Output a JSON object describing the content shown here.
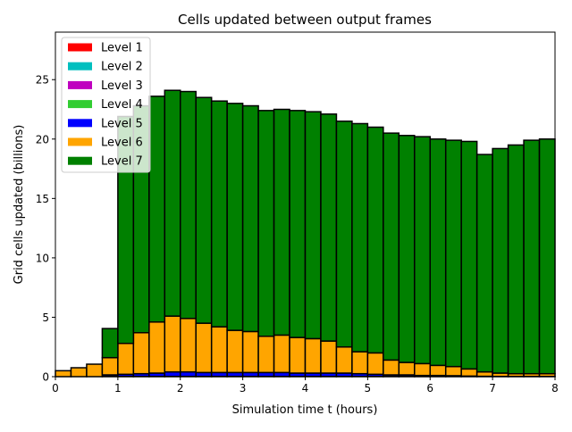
{
  "chart_data": {
    "type": "bar",
    "stacked": true,
    "title": "Cells updated between output frames",
    "xlabel": "Simulation time t (hours)",
    "ylabel": "Grid cells updated (billions)",
    "xlim": [
      0,
      8
    ],
    "ylim": [
      0,
      29
    ],
    "bar_width": 0.25,
    "x": [
      0,
      0.25,
      0.5,
      0.75,
      1,
      1.25,
      1.5,
      1.75,
      2,
      2.25,
      2.5,
      2.75,
      3,
      3.25,
      3.5,
      3.75,
      4,
      4.25,
      4.5,
      4.75,
      5,
      5.25,
      5.5,
      5.75,
      6,
      6.25,
      6.5,
      6.75,
      7,
      7.25,
      7.5,
      7.75
    ],
    "xticks": [
      "0",
      "1",
      "2",
      "3",
      "4",
      "5",
      "6",
      "7",
      "8"
    ],
    "yticks": [
      "0",
      "5",
      "10",
      "15",
      "20",
      "25"
    ],
    "legend_position": "upper-left",
    "series": [
      {
        "name": "Level 1",
        "color": "#ff0000",
        "values": [
          0,
          0,
          0,
          0,
          0,
          0,
          0,
          0,
          0,
          0,
          0,
          0,
          0,
          0,
          0,
          0,
          0,
          0,
          0,
          0,
          0,
          0,
          0,
          0,
          0,
          0,
          0,
          0,
          0,
          0,
          0,
          0
        ]
      },
      {
        "name": "Level 2",
        "color": "#00bfbf",
        "values": [
          0,
          0,
          0,
          0,
          0,
          0,
          0,
          0,
          0,
          0,
          0,
          0,
          0,
          0,
          0,
          0,
          0,
          0,
          0,
          0,
          0,
          0,
          0,
          0,
          0,
          0,
          0,
          0,
          0,
          0,
          0,
          0
        ]
      },
      {
        "name": "Level 3",
        "color": "#bf00bf",
        "values": [
          0,
          0,
          0,
          0,
          0,
          0,
          0,
          0,
          0,
          0,
          0,
          0,
          0,
          0,
          0,
          0,
          0,
          0,
          0,
          0,
          0,
          0,
          0,
          0,
          0,
          0,
          0,
          0,
          0,
          0,
          0,
          0
        ]
      },
      {
        "name": "Level 4",
        "color": "#32cd32",
        "values": [
          0,
          0,
          0,
          0.02,
          0.02,
          0.02,
          0.02,
          0.02,
          0.02,
          0.02,
          0.02,
          0.02,
          0.02,
          0.02,
          0.02,
          0.02,
          0.02,
          0.02,
          0.02,
          0.02,
          0.02,
          0.02,
          0.02,
          0.02,
          0.02,
          0.02,
          0.02,
          0.02,
          0.02,
          0.02,
          0.02,
          0.02
        ]
      },
      {
        "name": "Level 5",
        "color": "#0000ff",
        "values": [
          0,
          0,
          0,
          0.13,
          0.18,
          0.23,
          0.28,
          0.38,
          0.38,
          0.33,
          0.33,
          0.33,
          0.33,
          0.33,
          0.33,
          0.28,
          0.28,
          0.28,
          0.28,
          0.23,
          0.18,
          0.13,
          0.13,
          0.08,
          0.08,
          0.06,
          0.03,
          0.01,
          0,
          0,
          0,
          0
        ]
      },
      {
        "name": "Level 6",
        "color": "#ffa500",
        "values": [
          0.5,
          0.75,
          1.05,
          1.45,
          2.6,
          3.45,
          4.3,
          4.7,
          4.5,
          4.15,
          3.85,
          3.55,
          3.45,
          3.05,
          3.15,
          3.0,
          2.9,
          2.7,
          2.2,
          1.85,
          1.8,
          1.25,
          1.05,
          1.0,
          0.85,
          0.77,
          0.6,
          0.37,
          0.28,
          0.23,
          0.23,
          0.23
        ]
      },
      {
        "name": "Level 7",
        "color": "#008000",
        "values": [
          0,
          0,
          0,
          2.45,
          19.1,
          19.1,
          19.0,
          19.0,
          19.1,
          19.0,
          19.0,
          19.1,
          19.0,
          19.0,
          19.0,
          19.1,
          19.1,
          19.1,
          19.0,
          19.2,
          19.0,
          19.1,
          19.1,
          19.1,
          19.05,
          19.05,
          19.15,
          18.3,
          18.9,
          19.25,
          19.65,
          19.75
        ]
      }
    ]
  }
}
